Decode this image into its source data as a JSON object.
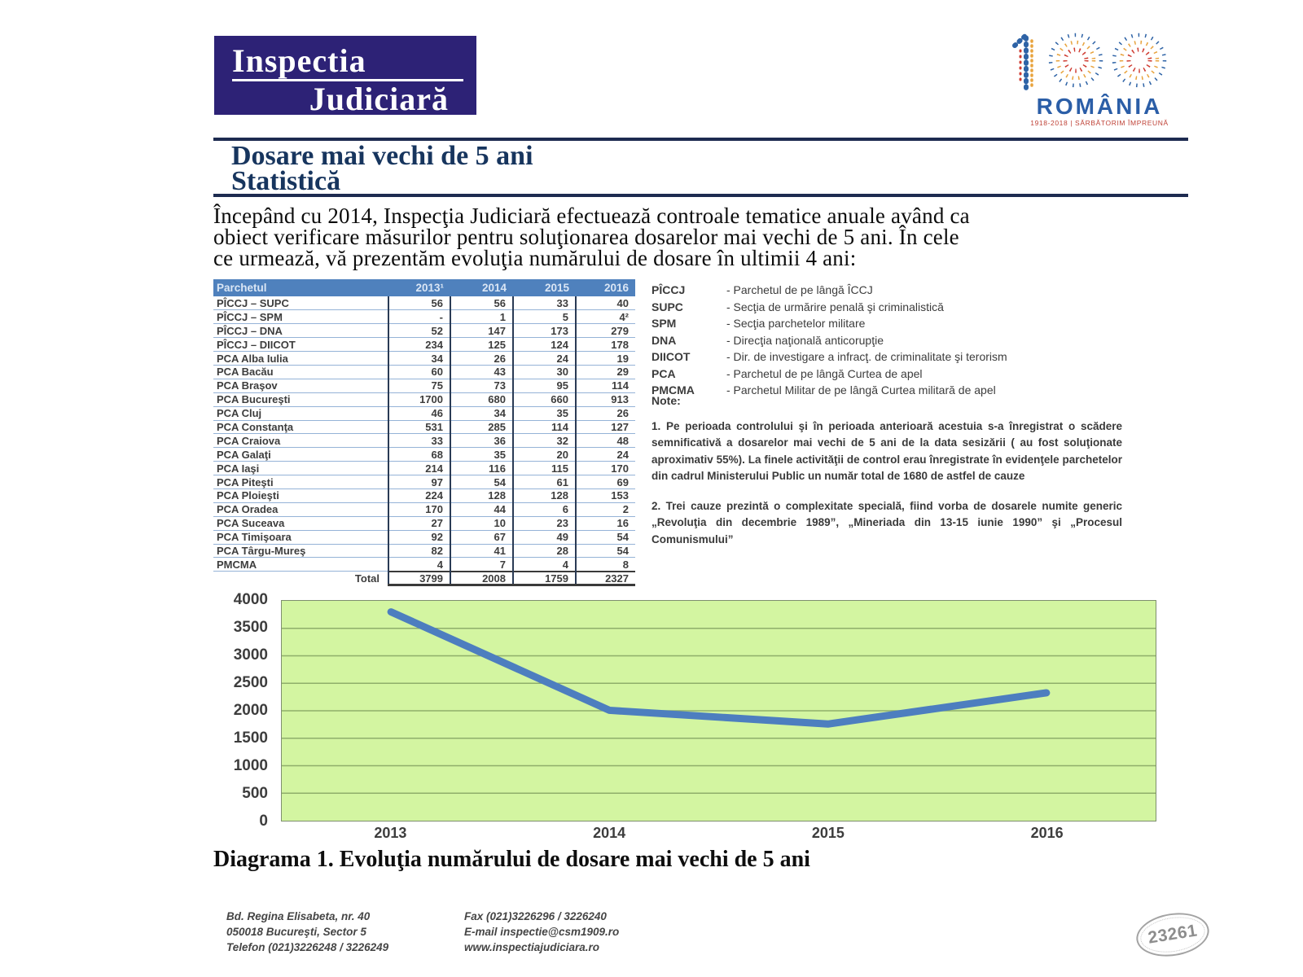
{
  "branding": {
    "logo_line1": "Inspectia",
    "logo_line2": "Judiciară",
    "logo_bg": "#2d2276",
    "centennial_name": "ROMÂNIA",
    "centennial_tagline": "1918-2018 | SĂRBĂTORIM ÎMPREUNĂ"
  },
  "title": {
    "line1": "Dosare mai vechi de 5 ani",
    "line2": "Statistică"
  },
  "intro": {
    "lines": [
      "Începând cu 2014, Inspecţia Judiciară efectuează controale tematice anuale având ca",
      "obiect verificare măsurilor pentru soluţionarea dosarelor mai vechi de 5 ani.  În cele",
      "ce urmează, vă prezentăm evoluţia numărului de dosare în ultimii 4 ani:"
    ]
  },
  "table": {
    "headers": [
      "Parchetul",
      "2013¹",
      "2014",
      "2015",
      "2016"
    ],
    "rows": [
      {
        "name": "PÎCCJ – SUPC",
        "values": [
          "56",
          "56",
          "33",
          "40"
        ]
      },
      {
        "name": "PÎCCJ – SPM",
        "values": [
          "-",
          "1",
          "5",
          "4²"
        ]
      },
      {
        "name": "PÎCCJ – DNA",
        "values": [
          "52",
          "147",
          "173",
          "279"
        ]
      },
      {
        "name": "PÎCCJ – DIICOT",
        "values": [
          "234",
          "125",
          "124",
          "178"
        ]
      },
      {
        "name": "PCA Alba Iulia",
        "values": [
          "34",
          "26",
          "24",
          "19"
        ]
      },
      {
        "name": "PCA Bacău",
        "values": [
          "60",
          "43",
          "30",
          "29"
        ]
      },
      {
        "name": "PCA Braşov",
        "values": [
          "75",
          "73",
          "95",
          "114"
        ]
      },
      {
        "name": "PCA Bucureşti",
        "values": [
          "1700",
          "680",
          "660",
          "913"
        ]
      },
      {
        "name": "PCA Cluj",
        "values": [
          "46",
          "34",
          "35",
          "26"
        ]
      },
      {
        "name": "PCA Constanţa",
        "values": [
          "531",
          "285",
          "114",
          "127"
        ]
      },
      {
        "name": "PCA Craiova",
        "values": [
          "33",
          "36",
          "32",
          "48"
        ]
      },
      {
        "name": "PCA Galaţi",
        "values": [
          "68",
          "35",
          "20",
          "24"
        ]
      },
      {
        "name": "PCA Iaşi",
        "values": [
          "214",
          "116",
          "115",
          "170"
        ]
      },
      {
        "name": "PCA Piteşti",
        "values": [
          "97",
          "54",
          "61",
          "69"
        ]
      },
      {
        "name": "PCA Ploieşti",
        "values": [
          "224",
          "128",
          "128",
          "153"
        ]
      },
      {
        "name": "PCA Oradea",
        "values": [
          "170",
          "44",
          "6",
          "2"
        ]
      },
      {
        "name": "PCA Suceava",
        "values": [
          "27",
          "10",
          "23",
          "16"
        ]
      },
      {
        "name": "PCA Timişoara",
        "values": [
          "92",
          "67",
          "49",
          "54"
        ]
      },
      {
        "name": "PCA Târgu-Mureş",
        "values": [
          "82",
          "41",
          "28",
          "54"
        ]
      },
      {
        "name": "PMCMA",
        "values": [
          "4",
          "7",
          "4",
          "8"
        ]
      }
    ],
    "total_label": "Total",
    "totals": [
      "3799",
      "2008",
      "1759",
      "2327"
    ]
  },
  "legend": {
    "items": [
      {
        "abbr": "PÎCCJ",
        "desc": "- Parchetul de pe lângă ÎCCJ"
      },
      {
        "abbr": "SUPC",
        "desc": "- Secţia de urmărire penală şi criminalistică"
      },
      {
        "abbr": "SPM",
        "desc": "- Secţia parchetelor militare"
      },
      {
        "abbr": "DNA",
        "desc": "- Direcţia naţională anticorupţie"
      },
      {
        "abbr": "DIICOT",
        "desc": "- Dir. de investigare a infracţ. de criminalitate şi terorism"
      },
      {
        "abbr": "PCA",
        "desc": "- Parchetul de pe lângă Curtea de apel"
      },
      {
        "abbr": "PMCMA",
        "desc": "- Parchetul Militar de pe lângă Curtea militară de apel"
      }
    ]
  },
  "notes": {
    "label": "Note:",
    "items": [
      "1. Pe perioada controlului şi în perioada anterioară acestuia s-a înregistrat o scădere semnificativă a dosarelor mai vechi de 5 ani de la data sesizării ( au fost soluţionate aproximativ 55%). La finele activităţii de control erau înregistrate în evidenţele parchetelor din cadrul Ministerului Public un număr total de 1680 de astfel de cauze",
      "2. Trei cauze prezintă o complexitate specială, fiind vorba de dosarele numite generic „Revoluţia din decembrie 1989”, „Mineriada din 13-15 iunie 1990” şi „Procesul Comunismului”"
    ]
  },
  "chart_data": {
    "type": "line",
    "x": [
      "2013",
      "2014",
      "2015",
      "2016"
    ],
    "values": [
      3799,
      2008,
      1759,
      2327
    ],
    "title": "",
    "xlabel": "",
    "ylabel": "",
    "ylim": [
      0,
      4000
    ],
    "ytick_step": 500,
    "grid": true,
    "legend_position": "none",
    "line_color": "#4d7ebf",
    "plot_bg": "#d3f5a1"
  },
  "caption": "Diagrama 1. Evoluţia numărului de dosare mai vechi de 5 ani",
  "footer": {
    "address": [
      "Bd. Regina Elisabeta, nr. 40",
      "050018 Bucureşti, Sector 5",
      "Telefon (021)3226248 / 3226249"
    ],
    "contact": [
      "Fax (021)3226296 / 3226240",
      "E-mail inspectie@csm1909.ro",
      "www.inspectiajudiciara.ro"
    ]
  },
  "stamp": "23261"
}
